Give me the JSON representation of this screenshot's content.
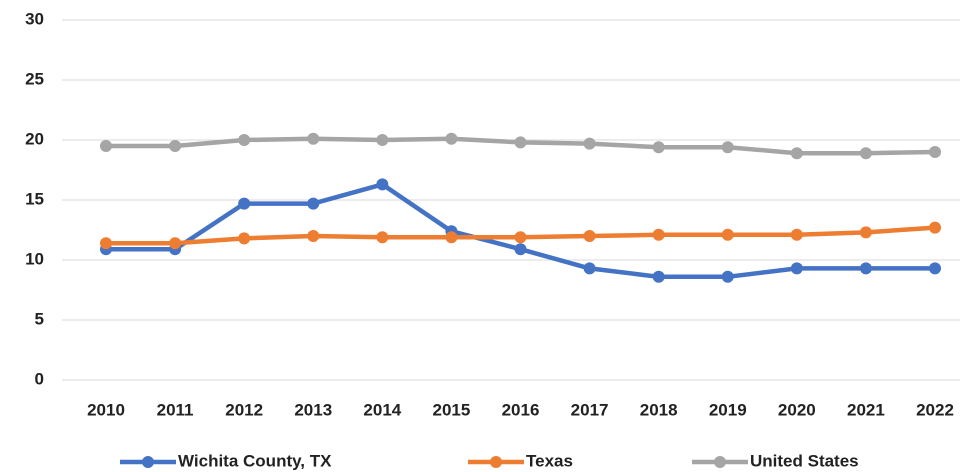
{
  "chart_data": {
    "type": "line",
    "categories": [
      "2010",
      "2011",
      "2012",
      "2013",
      "2014",
      "2015",
      "2016",
      "2017",
      "2018",
      "2019",
      "2020",
      "2021",
      "2022"
    ],
    "series": [
      {
        "name": "Wichita County, TX",
        "color": "#4472c4",
        "values": [
          10.9,
          10.9,
          14.7,
          14.7,
          16.3,
          12.4,
          10.9,
          9.3,
          8.6,
          8.6,
          9.3,
          9.3,
          9.3
        ]
      },
      {
        "name": "Texas",
        "color": "#ed7d31",
        "values": [
          11.4,
          11.4,
          11.8,
          12.0,
          11.9,
          11.9,
          11.9,
          12.0,
          12.1,
          12.1,
          12.1,
          12.3,
          12.7
        ]
      },
      {
        "name": "United States",
        "color": "#a5a5a5",
        "values": [
          19.5,
          19.5,
          20.0,
          20.1,
          20.0,
          20.1,
          19.8,
          19.7,
          19.4,
          19.4,
          18.9,
          18.9,
          19.0
        ]
      }
    ],
    "ylim": [
      0,
      30
    ],
    "yticks": [
      0,
      5,
      10,
      15,
      20,
      25,
      30
    ],
    "grid": true,
    "legend": "bottom"
  }
}
